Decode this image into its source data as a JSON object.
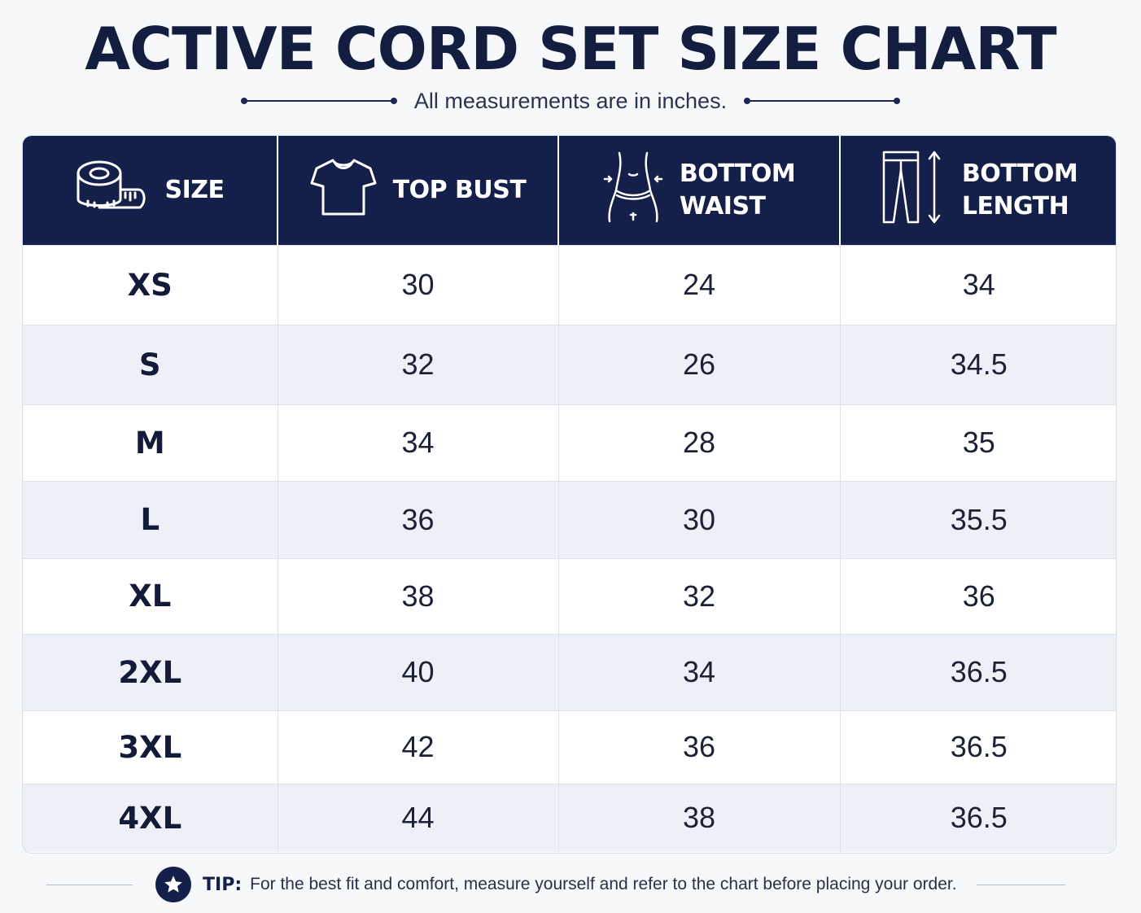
{
  "title": "ACTIVE CORD SET SIZE CHART",
  "subtitle": "All measurements are in inches.",
  "colors": {
    "header_bg": "#15204a",
    "alt_row": "#edf0f7",
    "text": "#141c3a"
  },
  "table": {
    "headers": [
      {
        "icon": "measuring-tape-icon",
        "lines": [
          "SIZE"
        ]
      },
      {
        "icon": "t-shirt-icon",
        "lines": [
          "TOP BUST"
        ]
      },
      {
        "icon": "waist-measure-icon",
        "lines": [
          "BOTTOM",
          "WAIST"
        ]
      },
      {
        "icon": "pants-length-icon",
        "lines": [
          "BOTTOM",
          "LENGTH"
        ]
      }
    ],
    "rows": [
      {
        "size": "XS",
        "bust": "30",
        "waist": "24",
        "length": "34"
      },
      {
        "size": "S",
        "bust": "32",
        "waist": "26",
        "length": "34.5"
      },
      {
        "size": "M",
        "bust": "34",
        "waist": "28",
        "length": "35"
      },
      {
        "size": "L",
        "bust": "36",
        "waist": "30",
        "length": "35.5"
      },
      {
        "size": "XL",
        "bust": "38",
        "waist": "32",
        "length": "36"
      },
      {
        "size": "2XL",
        "bust": "40",
        "waist": "34",
        "length": "36.5"
      },
      {
        "size": "3XL",
        "bust": "42",
        "waist": "36",
        "length": "36.5"
      },
      {
        "size": "4XL",
        "bust": "44",
        "waist": "38",
        "length": "36.5"
      }
    ]
  },
  "tip": {
    "icon": "star-icon",
    "label": "TIP:",
    "text": "For the best fit and comfort, measure yourself and refer to the chart before placing your order."
  }
}
